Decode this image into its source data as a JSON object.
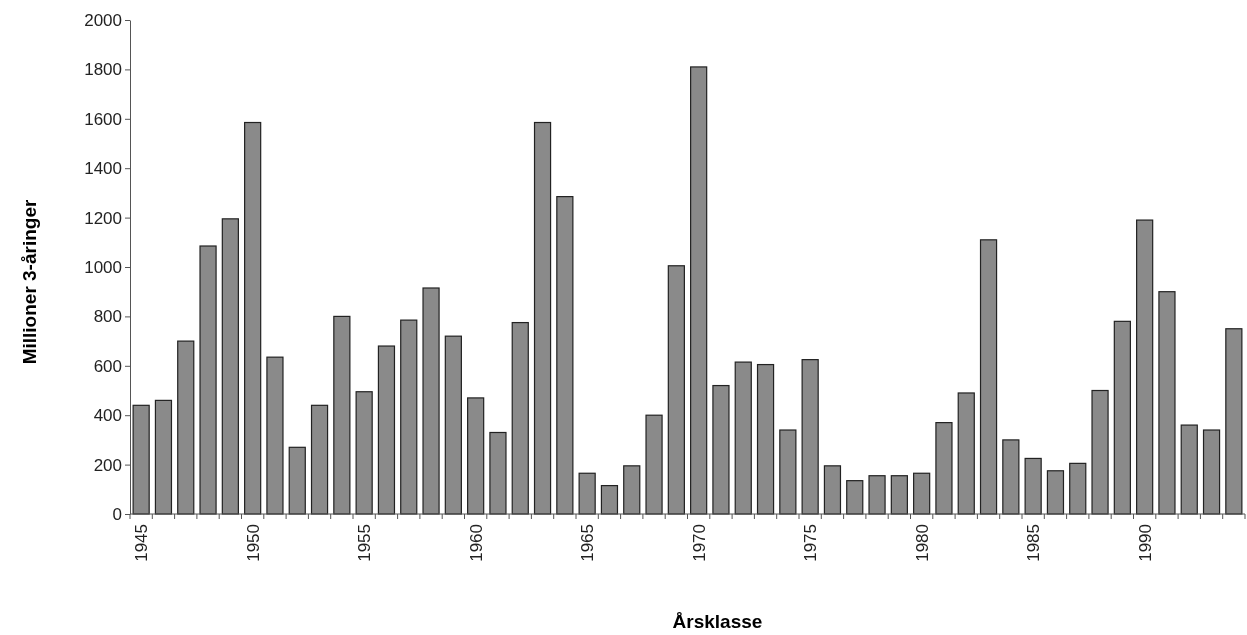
{
  "chart_data": {
    "type": "bar",
    "xlabel": "Årsklasse",
    "ylabel": "Millioner 3-åringer",
    "categories": [
      "1945",
      null,
      null,
      null,
      null,
      "1950",
      null,
      null,
      null,
      null,
      "1955",
      null,
      null,
      null,
      null,
      "1960",
      null,
      null,
      null,
      null,
      "1965",
      null,
      null,
      null,
      null,
      "1970",
      null,
      null,
      null,
      null,
      "1975",
      null,
      null,
      null,
      null,
      "1980",
      null,
      null,
      null,
      null,
      "1985",
      null,
      null,
      null,
      null,
      "1990",
      null,
      null,
      null,
      null
    ],
    "values": [
      440,
      460,
      700,
      1085,
      1195,
      1585,
      635,
      270,
      440,
      800,
      495,
      680,
      785,
      915,
      720,
      470,
      330,
      775,
      1585,
      1285,
      165,
      115,
      195,
      400,
      1005,
      1810,
      520,
      615,
      605,
      340,
      625,
      195,
      135,
      155,
      155,
      165,
      370,
      490,
      1110,
      300,
      225,
      175,
      205,
      500,
      780,
      1190,
      900,
      360,
      340,
      750
    ],
    "color": "#8a8a8a",
    "ylim": [
      0,
      2000
    ],
    "yticks": [
      0,
      200,
      400,
      600,
      800,
      1000,
      1200,
      1400,
      1600,
      1800,
      2000
    ],
    "grid": false
  }
}
